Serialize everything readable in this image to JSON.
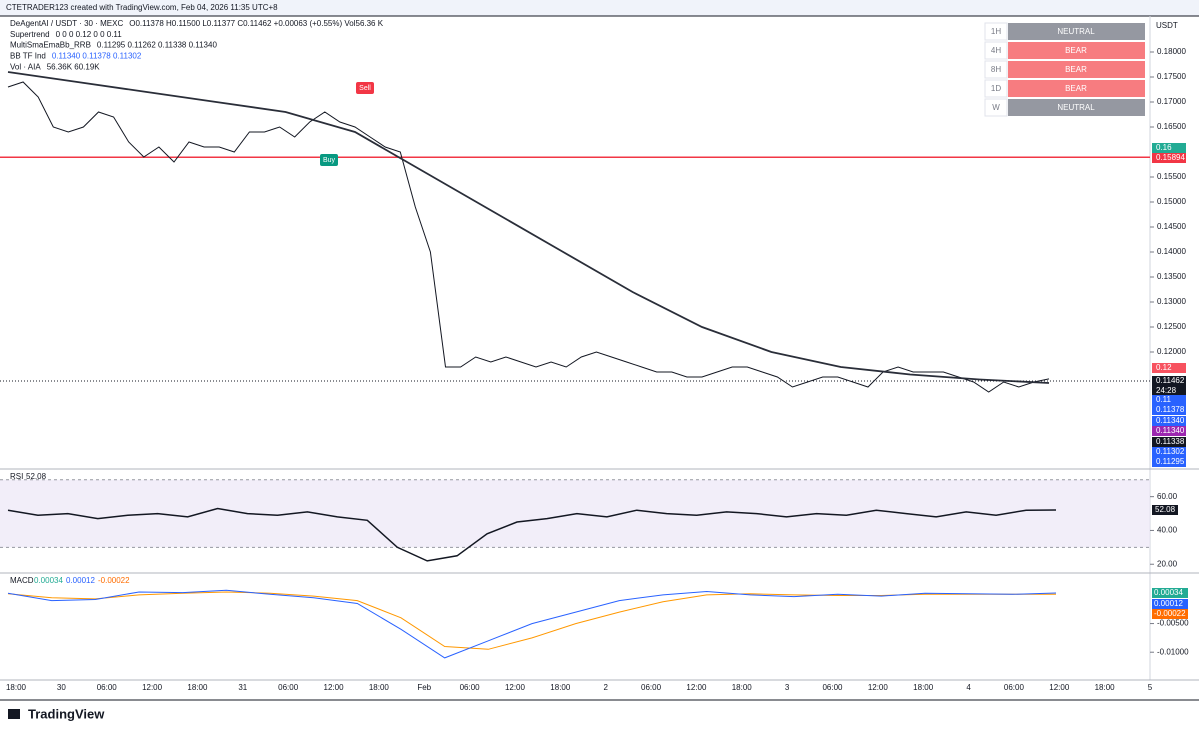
{
  "header": "CTETRADER123 created with TradingView.com, Feb 04, 2026 11:35 UTC+8",
  "legend": [
    {
      "name": "DeAgentAI / USDT · 30 · MEXC",
      "text": "O0.11378 H0.11500 L0.11377 C0.11462 +0.00063 (+0.55%) Vol56.36 K"
    },
    {
      "name": "Supertrend",
      "text": "0 0 0 0.12 0 0 0.11"
    },
    {
      "name": "MultiSmaEmaBb_RRB",
      "text": "0.11295 0.11262 0.11338 0.11340"
    },
    {
      "name": "BB TF Ind",
      "text": "0.11340 0.11378 0.11302"
    },
    {
      "name": "Vol · AIA",
      "text": "56.36K 60.19K"
    }
  ],
  "signal_table": {
    "rows": [
      [
        "1H",
        "NEUTRAL"
      ],
      [
        "4H",
        "BEAR"
      ],
      [
        "8H",
        "BEAR"
      ],
      [
        "1D",
        "BEAR"
      ],
      [
        "W",
        "NEUTRAL"
      ]
    ]
  },
  "price_pane": {
    "unit": "USDT",
    "ylim": [
      0.0968,
      0.1872
    ],
    "yticks": [
      {
        "value": 0.18,
        "label": "0.18000"
      },
      {
        "value": 0.175,
        "label": "0.17500"
      },
      {
        "value": 0.17,
        "label": "0.17000"
      },
      {
        "value": 0.165,
        "label": "0.16500"
      },
      {
        "value": 0.155,
        "label": "0.15500"
      },
      {
        "value": 0.15,
        "label": "0.15000"
      },
      {
        "value": 0.145,
        "label": "0.14500"
      },
      {
        "value": 0.14,
        "label": "0.14000"
      },
      {
        "value": 0.135,
        "label": "0.13500"
      },
      {
        "value": 0.13,
        "label": "0.13000"
      },
      {
        "value": 0.125,
        "label": "0.12500"
      },
      {
        "value": 0.12,
        "label": "0.12000"
      }
    ],
    "level": 0.15894,
    "close": [
      0.173,
      0.174,
      0.171,
      0.165,
      0.164,
      0.165,
      0.168,
      0.167,
      0.162,
      0.159,
      0.161,
      0.158,
      0.162,
      0.161,
      0.161,
      0.16,
      0.164,
      0.164,
      0.165,
      0.163,
      0.166,
      0.168,
      0.166,
      0.165,
      0.163,
      0.161,
      0.16,
      0.149,
      0.14,
      0.117,
      0.117,
      0.119,
      0.118,
      0.119,
      0.118,
      0.117,
      0.118,
      0.117,
      0.119,
      0.12,
      0.119,
      0.118,
      0.117,
      0.116,
      0.116,
      0.115,
      0.115,
      0.116,
      0.117,
      0.117,
      0.116,
      0.115,
      0.113,
      0.114,
      0.115,
      0.115,
      0.114,
      0.113,
      0.116,
      0.117,
      0.116,
      0.116,
      0.116,
      0.115,
      0.114,
      0.112,
      0.114,
      0.113,
      0.114,
      0.11462
    ],
    "ma": [
      0.176,
      0.174,
      0.172,
      0.17,
      0.168,
      0.164,
      0.156,
      0.148,
      0.14,
      0.132,
      0.125,
      0.12,
      0.117,
      0.1155,
      0.1145,
      0.1138
    ],
    "signals": [
      {
        "label": "Sell",
        "color": "#f23645"
      },
      {
        "label": "Buy",
        "color": "#089981"
      }
    ],
    "tags": [
      {
        "label": "0.16",
        "color": "#22ab94"
      },
      {
        "label": "0.15894",
        "color": "#f23645"
      },
      {
        "label": "0.12",
        "color": "#f7525f"
      },
      {
        "label": "0.11462",
        "color": "#131722"
      },
      {
        "label": "24:28",
        "color": "#131722"
      },
      {
        "label": "0.11",
        "color": "#2962ff"
      },
      {
        "label": "0.11378",
        "color": "#2962ff"
      },
      {
        "label": "0.11340",
        "color": "#2962ff"
      },
      {
        "label": "0.11340",
        "color": "#9c27b0"
      },
      {
        "label": "0.11338",
        "color": "#131722"
      },
      {
        "label": "0.11302",
        "color": "#2962ff"
      },
      {
        "label": "0.11295",
        "color": "#2962ff"
      }
    ]
  },
  "rsi_pane": {
    "name": "RSI",
    "value": "52.08",
    "ylim": [
      16,
      74
    ],
    "band": [
      30,
      70
    ],
    "yticks": [
      {
        "value": 60,
        "label": "60.00"
      },
      {
        "value": 40,
        "label": "40.00"
      },
      {
        "value": 20,
        "label": "20.00"
      }
    ],
    "values": [
      52,
      49,
      50,
      47,
      49,
      50,
      48,
      53,
      50,
      49,
      51,
      48,
      46,
      30,
      22,
      25,
      38,
      45,
      47,
      50,
      48,
      52,
      50,
      49,
      51,
      50,
      48,
      50,
      49,
      52,
      50,
      48,
      51,
      49,
      52,
      52.08
    ]
  },
  "macd_pane": {
    "name": "MACD",
    "values_text": [
      "0.00034",
      "0.00012",
      "-0.00022"
    ],
    "ylim": [
      -0.0145,
      0.0033
    ],
    "yticks": [
      {
        "value": -0.005,
        "label": "-0.00500"
      },
      {
        "value": -0.01,
        "label": "-0.01000"
      }
    ],
    "macd": [
      0.0003,
      -0.001,
      -0.0008,
      0.0005,
      0.0004,
      0.0008,
      0.0001,
      -0.0005,
      -0.0015,
      -0.006,
      -0.011,
      -0.008,
      -0.005,
      -0.003,
      -0.001,
      0.0,
      0.0006,
      0.0,
      -0.0003,
      0.0001,
      -0.0002,
      0.0003,
      0.0002,
      0.0001,
      0.00034
    ],
    "signal": [
      0.0002,
      -0.0005,
      -0.0007,
      0.0,
      0.0003,
      0.0005,
      0.0003,
      -0.0002,
      -0.001,
      -0.004,
      -0.009,
      -0.0095,
      -0.0075,
      -0.005,
      -0.003,
      -0.0012,
      0.0,
      0.0002,
      0.0,
      -0.0001,
      -0.0001,
      0.0001,
      0.0001,
      0.0001,
      0.00012
    ],
    "tags": [
      {
        "label": "0.00034",
        "color": "#22ab94"
      },
      {
        "label": "0.00012",
        "color": "#2962ff"
      },
      {
        "label": "-0.00022",
        "color": "#ff6d00"
      }
    ]
  },
  "time_axis": [
    "18:00",
    "30",
    "06:00",
    "12:00",
    "18:00",
    "31",
    "06:00",
    "12:00",
    "18:00",
    "Feb",
    "06:00",
    "12:00",
    "18:00",
    "2",
    "06:00",
    "12:00",
    "18:00",
    "3",
    "06:00",
    "12:00",
    "18:00",
    "4",
    "06:00",
    "12:00",
    "18:00",
    "5"
  ],
  "footer": "TradingView"
}
